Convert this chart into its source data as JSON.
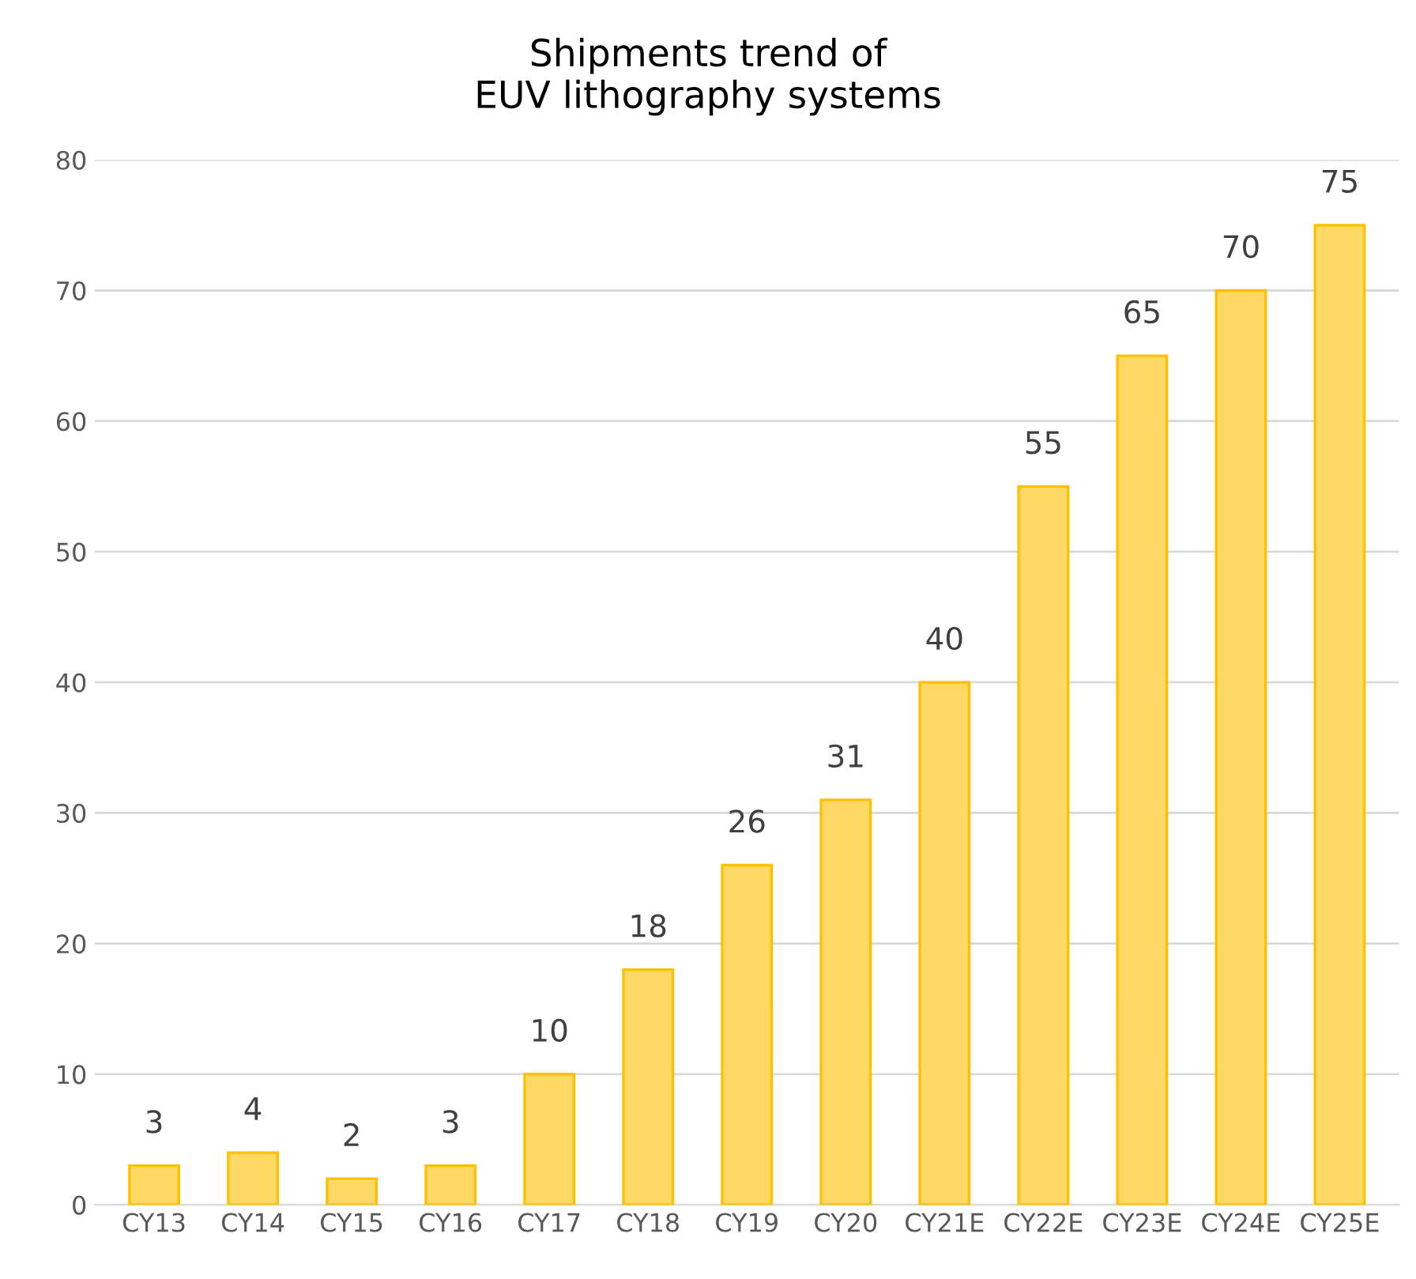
{
  "chart_data": {
    "type": "bar",
    "title": "Shipments trend of\nEUV lithography systems",
    "categories": [
      "CY13",
      "CY14",
      "CY15",
      "CY16",
      "CY17",
      "CY18",
      "CY19",
      "CY20",
      "CY21E",
      "CY22E",
      "CY23E",
      "CY24E",
      "CY25E"
    ],
    "values": [
      3,
      4,
      2,
      3,
      10,
      18,
      26,
      31,
      40,
      55,
      65,
      70,
      75
    ],
    "color": "#ffd966",
    "ylim": [
      0,
      80
    ],
    "yticks": [
      0,
      10,
      20,
      30,
      40,
      50,
      60,
      70,
      80
    ],
    "grid": "y",
    "data_labels": true
  }
}
